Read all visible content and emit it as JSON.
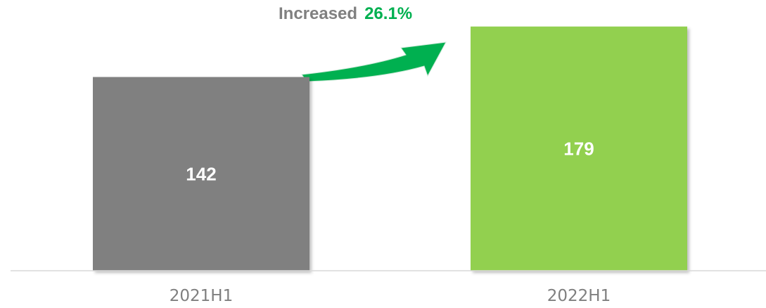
{
  "chart_data": {
    "type": "bar",
    "title": "",
    "xlabel": "",
    "ylabel": "",
    "categories": [
      "2021H1",
      "2022H1"
    ],
    "values": [
      142,
      179
    ],
    "bar_colors": [
      "#808080",
      "#92d050"
    ],
    "ylim": [
      0,
      200
    ],
    "grid": false,
    "legend": "none",
    "annotation": {
      "label": "Increased",
      "value": "26.1%",
      "label_color": "#808080",
      "value_color": "#00b050",
      "arrow_color": "#00b050",
      "arrow_icon": "curved-arrow-up-right-icon"
    }
  }
}
